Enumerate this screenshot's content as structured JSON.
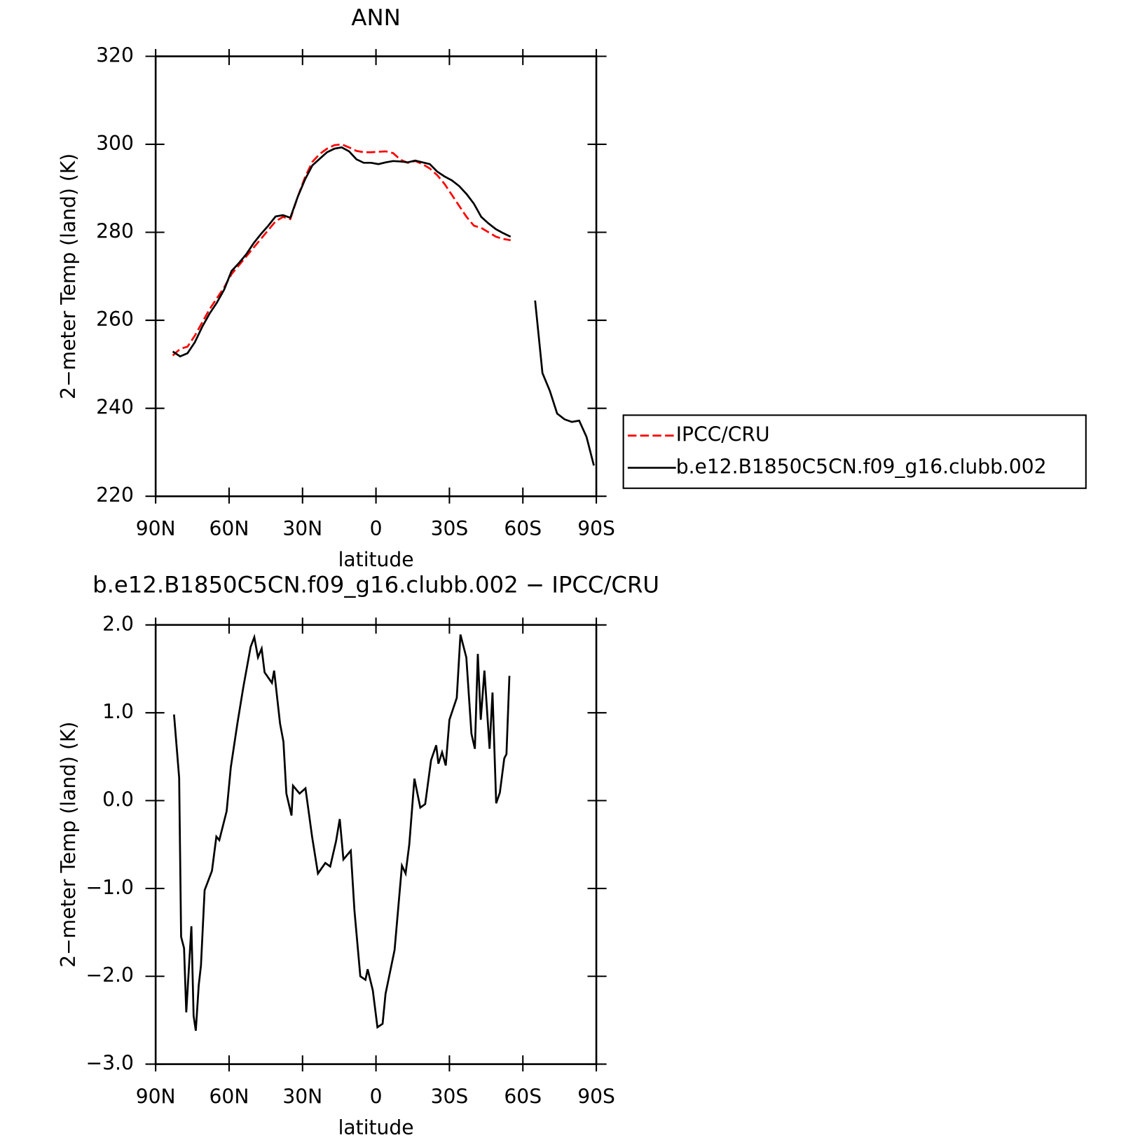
{
  "chart_data": [
    {
      "type": "line",
      "title": "ANN",
      "xlabel": "latitude",
      "ylabel": "2−meter Temp (land) (K)",
      "xlim": [
        90,
        -90
      ],
      "xticks": [
        {
          "value": 90,
          "label": "90N"
        },
        {
          "value": 60,
          "label": "60N"
        },
        {
          "value": 30,
          "label": "30N"
        },
        0,
        {
          "value": -30,
          "label": "30S"
        },
        {
          "value": -60,
          "label": "60S"
        },
        {
          "value": -90,
          "label": "90S"
        }
      ],
      "ylim": [
        220,
        320
      ],
      "yticks": [
        220,
        240,
        260,
        280,
        300,
        320
      ],
      "legend": "right",
      "x": [
        83,
        80,
        77,
        74,
        71,
        68,
        65,
        62,
        59,
        56,
        53,
        50,
        47,
        44,
        41,
        38,
        35,
        32,
        29,
        26,
        23,
        20,
        17,
        14,
        11,
        8,
        5,
        2,
        -1,
        -4,
        -7,
        -10,
        -13,
        -16,
        -19,
        -22,
        -25,
        -28,
        -31,
        -34,
        -37,
        -40,
        -43,
        -46,
        -49,
        -52,
        -55,
        -60,
        -65,
        -68,
        -71,
        -74,
        -77,
        -80,
        -83,
        -86,
        -89
      ],
      "series": [
        {
          "name": "IPCC/CRU",
          "color": "#ff0000",
          "dash": true,
          "values": [
            252,
            253.5,
            254,
            256.5,
            259.5,
            262.5,
            265,
            267.5,
            270.5,
            272.5,
            274.5,
            276.5,
            278.5,
            280.5,
            282.5,
            283.5,
            283,
            288,
            292.5,
            296,
            297.8,
            299,
            299.8,
            300,
            299.3,
            298.5,
            298.2,
            298.2,
            298.3,
            298.4,
            298,
            296.5,
            295.8,
            296.2,
            295.5,
            294.5,
            293,
            291,
            288.5,
            286,
            283.5,
            281.5,
            281,
            280,
            279,
            278.5,
            278.2,
            null,
            null,
            null,
            null,
            null,
            null,
            null,
            null,
            null,
            null
          ]
        },
        {
          "name": "b.e12.B1850C5CN.f09_g16.clubb.002",
          "color": "#000000",
          "dash": false,
          "values": [
            252.9,
            251.8,
            252.5,
            255,
            258.5,
            261.5,
            264,
            267,
            271.2,
            273,
            275,
            277.5,
            279.6,
            281.5,
            283.6,
            283.9,
            283.3,
            288,
            292,
            295.2,
            296.7,
            298.2,
            299,
            299.3,
            298.4,
            296.6,
            295.8,
            295.8,
            295.5,
            295.9,
            296.2,
            296.1,
            295.9,
            296.3,
            295.9,
            295.5,
            293.8,
            292.7,
            291.8,
            290.5,
            288.7,
            286.5,
            283.5,
            282,
            280.7,
            279.8,
            279,
            null,
            264.5,
            248,
            244,
            238.8,
            237.5,
            236.9,
            237.2,
            233.5,
            227
          ]
        }
      ]
    },
    {
      "type": "line",
      "title": "b.e12.B1850C5CN.f09_g16.clubb.002 − IPCC/CRU",
      "xlabel": "latitude",
      "ylabel": "2−meter Temp (land) (K)",
      "xlim": [
        90,
        -90
      ],
      "xticks": [
        {
          "value": 90,
          "label": "90N"
        },
        {
          "value": 60,
          "label": "60N"
        },
        {
          "value": 30,
          "label": "30N"
        },
        0,
        {
          "value": -30,
          "label": "30S"
        },
        {
          "value": -60,
          "label": "60S"
        },
        {
          "value": -90,
          "label": "90S"
        }
      ],
      "ylim": [
        -3,
        2
      ],
      "yticks": [
        {
          "value": -3,
          "label": "−3.0"
        },
        {
          "value": -2,
          "label": "−2.0"
        },
        {
          "value": -1,
          "label": "−1.0"
        },
        {
          "value": 0,
          "label": "0.0"
        },
        {
          "value": 1,
          "label": "1.0"
        },
        {
          "value": 2,
          "label": "2.0"
        }
      ],
      "x": [
        82.5,
        80.4,
        79.6,
        78.4,
        77.5,
        75.4,
        74.5,
        73.6,
        72.4,
        71.5,
        70,
        67,
        65.2,
        64,
        61,
        59.3,
        56.6,
        54.2,
        51.2,
        49.7,
        48.2,
        46.7,
        45.5,
        42.5,
        41.6,
        39.2,
        37.8,
        36.6,
        34.5,
        33.9,
        31.2,
        28.8,
        26.1,
        23.7,
        20.7,
        18.7,
        16.3,
        14.8,
        13.3,
        10.3,
        8.8,
        6.4,
        4.3,
        3.4,
        1.3,
        -0.6,
        -2.7,
        -3.9,
        -7.6,
        -10.6,
        -12.1,
        -13.6,
        -15.7,
        -18.1,
        -20.1,
        -22.5,
        -24.6,
        -25.5,
        -27,
        -28.5,
        -30,
        -33,
        -34.5,
        -36.9,
        -39,
        -40.4,
        -41.6,
        -42.8,
        -44.3,
        -46.4,
        -47.6,
        -49.1,
        -50.6,
        -52.4,
        -53.3,
        -54.5
      ],
      "series": [
        {
          "color": "#000000",
          "dash": false,
          "values": [
            0.98,
            0.26,
            -1.55,
            -1.68,
            -2.41,
            -1.43,
            -2.45,
            -2.62,
            -2.1,
            -1.88,
            -1.02,
            -0.8,
            -0.41,
            -0.45,
            -0.12,
            0.38,
            0.88,
            1.29,
            1.75,
            1.86,
            1.63,
            1.73,
            1.46,
            1.34,
            1.48,
            0.88,
            0.67,
            0.08,
            -0.17,
            0.17,
            0.08,
            0.14,
            -0.41,
            -0.83,
            -0.71,
            -0.75,
            -0.46,
            -0.21,
            -0.67,
            -0.57,
            -1.25,
            -2,
            -2.04,
            -1.92,
            -2.16,
            -2.58,
            -2.54,
            -2.2,
            -1.7,
            -0.74,
            -0.83,
            -0.5,
            0.25,
            -0.08,
            -0.04,
            0.46,
            0.63,
            0.42,
            0.55,
            0.4,
            0.92,
            1.17,
            1.89,
            1.63,
            0.76,
            0.59,
            1.67,
            0.92,
            1.48,
            0.59,
            1.23,
            -0.03,
            0.09,
            0.48,
            0.53,
            1.42
          ]
        }
      ]
    }
  ]
}
